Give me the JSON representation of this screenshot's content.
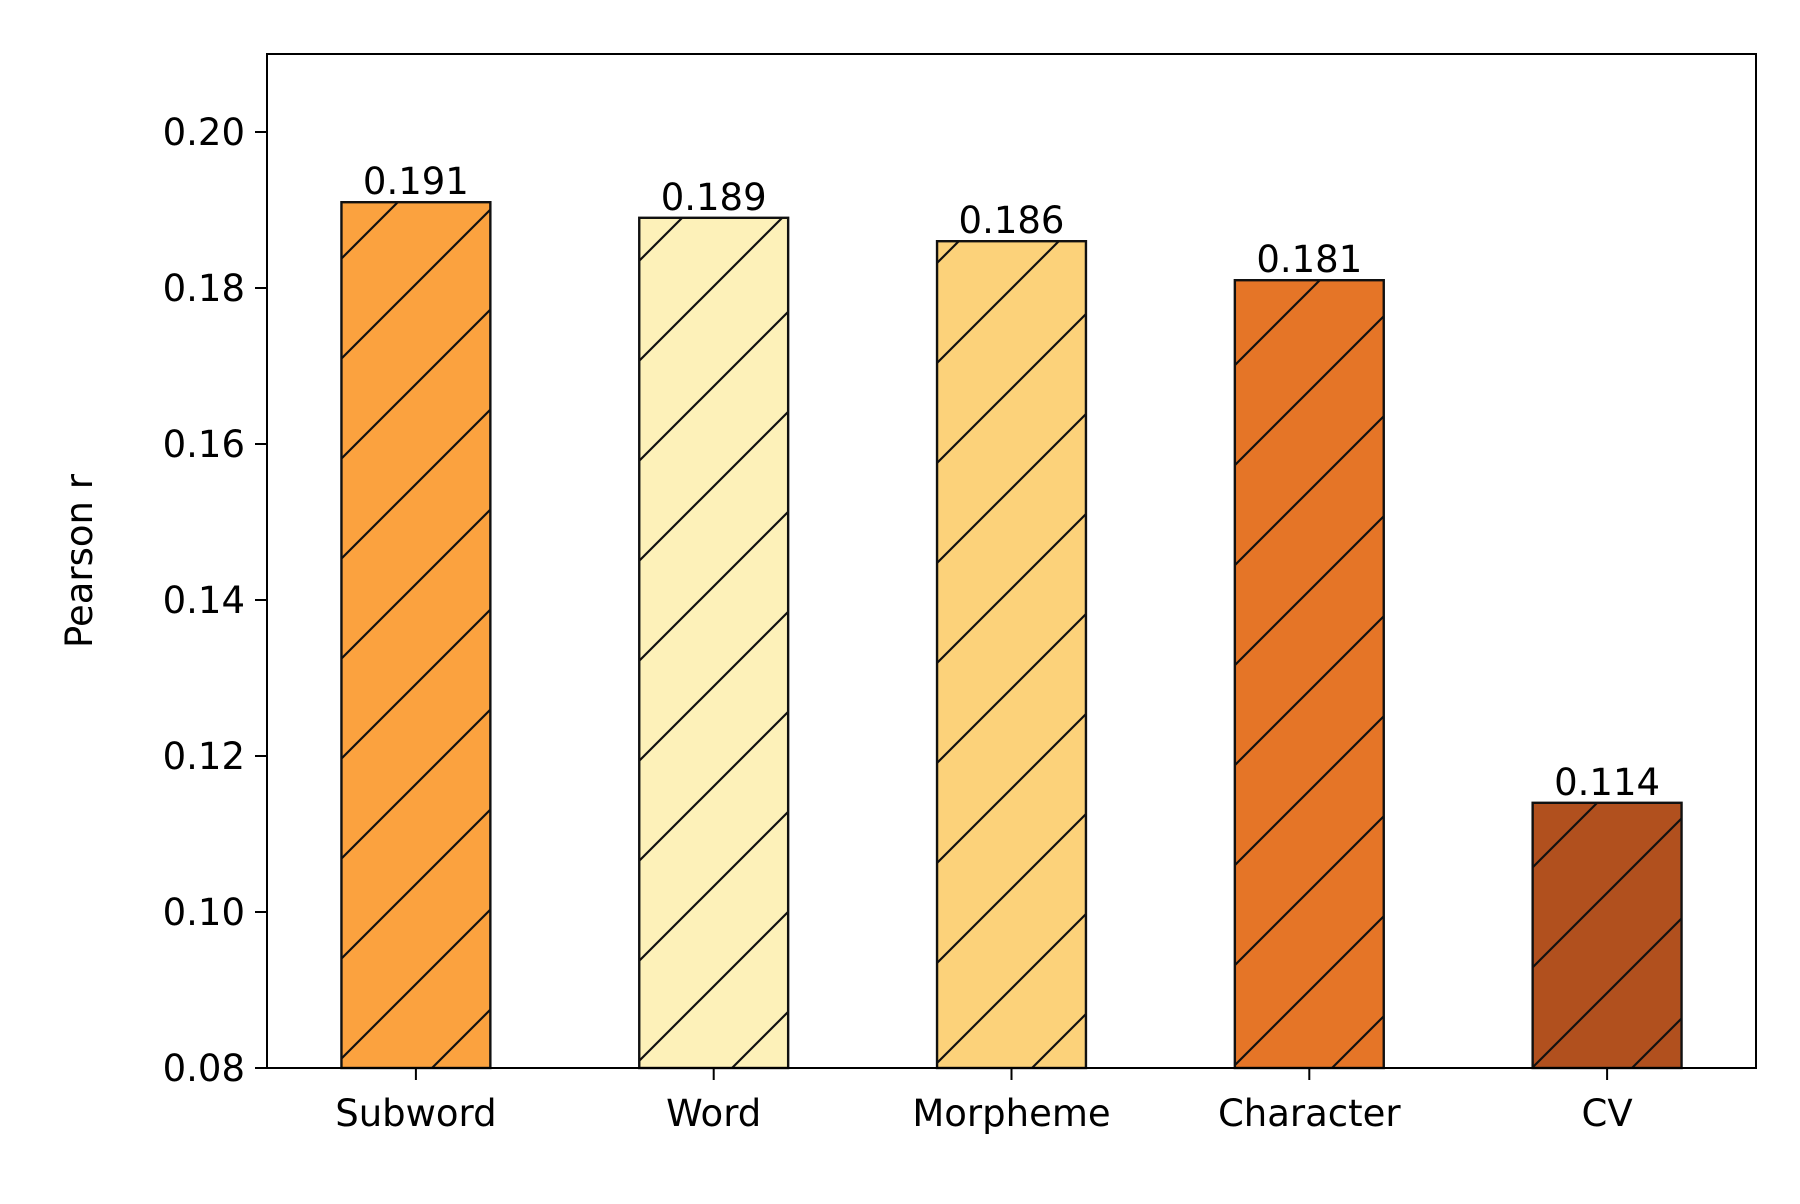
{
  "chart_data": {
    "type": "bar",
    "title": "",
    "xlabel": "",
    "ylabel": "Pearson r",
    "categories": [
      "Subword",
      "Word",
      "Morpheme",
      "Character",
      "CV"
    ],
    "values": [
      0.191,
      0.189,
      0.186,
      0.181,
      0.114
    ],
    "value_labels": [
      "0.191",
      "0.189",
      "0.186",
      "0.181",
      "0.114"
    ],
    "colors": [
      "#FBA23F",
      "#FDF1B9",
      "#FCD27A",
      "#E57527",
      "#B1501E"
    ],
    "hatch": "diagonal",
    "ylim": [
      0.08,
      0.21
    ],
    "yticks": [
      0.08,
      0.1,
      0.12,
      0.14,
      0.16,
      0.18,
      0.2
    ],
    "ytick_labels": [
      "0.08",
      "0.10",
      "0.12",
      "0.14",
      "0.16",
      "0.18",
      "0.20"
    ],
    "grid": false,
    "legend": "none"
  }
}
